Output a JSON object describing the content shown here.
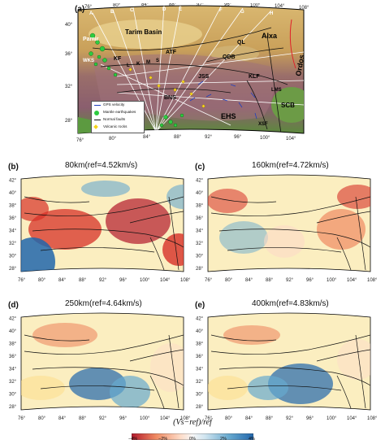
{
  "panel_a": {
    "label": "(a)",
    "lon_ticks": [
      "76°",
      "80°",
      "84°",
      "88°",
      "92°",
      "96°",
      "100°",
      "104°",
      "108°"
    ],
    "lat_ticks": [
      "28°",
      "32°",
      "36°",
      "40°"
    ],
    "profile_letters": [
      "A",
      "B",
      "C",
      "D",
      "E",
      "F",
      "G",
      "H"
    ],
    "place_names": {
      "tarim": "Tarim Basin",
      "alxa": "Alxa",
      "ordos": "Ordos",
      "scb": "SCB",
      "ehs": "EHS",
      "bns": "BNS",
      "jss": "JSS",
      "qdb": "QDB",
      "ql": "QL",
      "klf": "KLF",
      "atf": "ATF",
      "kf": "KF",
      "pamir": "Pamir",
      "wks": "WKS",
      "lms": "LMS",
      "l": "L",
      "k": "K",
      "m": "M",
      "s": "S",
      "xsf": "XSF"
    },
    "legend": {
      "gps": "GPS velocity",
      "mantle": "Mantle earthquakes",
      "normal": "Normal faults",
      "volcanic": "Volcanic rocks"
    }
  },
  "panels": [
    {
      "label": "(b)",
      "title": "80km(ref=4.52km/s)"
    },
    {
      "label": "(c)",
      "title": "160km(ref=4.72km/s)"
    },
    {
      "label": "(d)",
      "title": "250km(ref=4.64km/s)"
    },
    {
      "label": "(e)",
      "title": "400km(ref=4.83km/s)"
    }
  ],
  "panel_ticks": {
    "lon": [
      "76°",
      "80°",
      "84°",
      "88°",
      "92°",
      "96°",
      "100°",
      "104°",
      "108°"
    ],
    "lat": [
      "28°",
      "30°",
      "32°",
      "34°",
      "36°",
      "38°",
      "40°",
      "42°"
    ]
  },
  "colorbar": {
    "title": "(Vs−ref)/ref",
    "ticks": [
      "−4%",
      "−2%",
      "0%",
      "2%",
      "4%"
    ],
    "colors": [
      "#b2182b",
      "#ef8a62",
      "#fddbc7",
      "#f7f7f7",
      "#d1e5f0",
      "#67a9cf",
      "#2166ac"
    ]
  }
}
